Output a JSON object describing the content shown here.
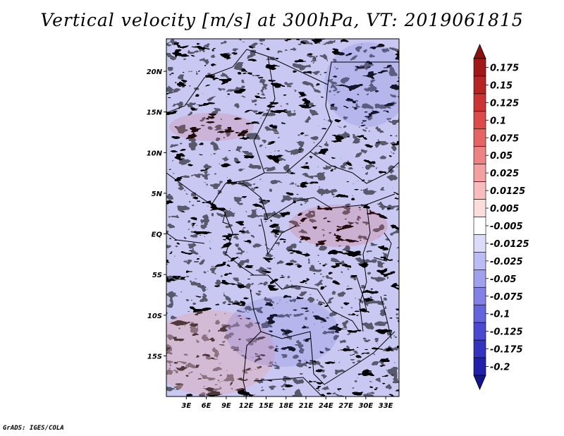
{
  "title": "Vertical velocity [m/s] at 300hPa, VT: 2019061815",
  "credit": "GrADS: IGES/COLA",
  "map": {
    "type": "shaded-map",
    "variable": "Vertical velocity",
    "units": "m/s",
    "level": "300hPa",
    "valid_time": "2019061815",
    "region": "Central Africa",
    "lon_range_deg": [
      0,
      35
    ],
    "lat_range_deg": [
      -20,
      24
    ],
    "lat_ticks": [
      {
        "value": 20,
        "label": "20N"
      },
      {
        "value": 15,
        "label": "15N"
      },
      {
        "value": 10,
        "label": "10N"
      },
      {
        "value": 5,
        "label": "5N"
      },
      {
        "value": 0,
        "label": "EQ"
      },
      {
        "value": -5,
        "label": "5S"
      },
      {
        "value": -10,
        "label": "10S"
      },
      {
        "value": -15,
        "label": "15S"
      }
    ],
    "lon_ticks": [
      {
        "value": 3,
        "label": "3E"
      },
      {
        "value": 6,
        "label": "6E"
      },
      {
        "value": 9,
        "label": "9E"
      },
      {
        "value": 12,
        "label": "12E"
      },
      {
        "value": 15,
        "label": "15E"
      },
      {
        "value": 18,
        "label": "18E"
      },
      {
        "value": 21,
        "label": "21E"
      },
      {
        "value": 24,
        "label": "24E"
      },
      {
        "value": 27,
        "label": "27E"
      },
      {
        "value": 30,
        "label": "30E"
      },
      {
        "value": 33,
        "label": "33E"
      }
    ]
  },
  "colorbar": {
    "levels": [
      {
        "label": "0.175",
        "color": "#a01818"
      },
      {
        "label": "0.15",
        "color": "#b82424"
      },
      {
        "label": "0.125",
        "color": "#cc3333"
      },
      {
        "label": "0.1",
        "color": "#dc4a4a"
      },
      {
        "label": "0.075",
        "color": "#e66464"
      },
      {
        "label": "0.05",
        "color": "#ee8282"
      },
      {
        "label": "0.025",
        "color": "#f4a0a0"
      },
      {
        "label": "0.0125",
        "color": "#f8bcbc"
      },
      {
        "label": "0.005",
        "color": "#fcdcdc"
      },
      {
        "label": "-0.005",
        "color": "#ffffff"
      },
      {
        "label": "-0.0125",
        "color": "#dcdcfa"
      },
      {
        "label": "-0.025",
        "color": "#bcbcf4"
      },
      {
        "label": "-0.05",
        "color": "#a0a0ee"
      },
      {
        "label": "-0.075",
        "color": "#8282e6"
      },
      {
        "label": "-0.1",
        "color": "#6464dc"
      },
      {
        "label": "-0.125",
        "color": "#4a4ad0"
      },
      {
        "label": "-0.175",
        "color": "#3333c0"
      },
      {
        "label": "-0.2",
        "color": "#2020a8"
      }
    ],
    "over_color": "#8c1010",
    "under_color": "#14148c"
  }
}
